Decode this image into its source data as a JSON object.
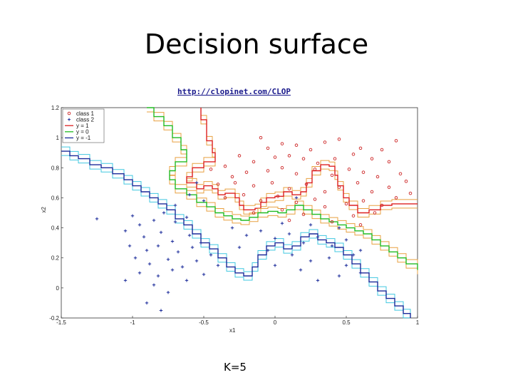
{
  "slide": {
    "title": "Decision surface",
    "link": "http://clopinet.com/CLOP",
    "caption": "K=5"
  },
  "colors": {
    "class1": "#cc2222",
    "class2": "#1a2a9a",
    "y1": "#dd2020",
    "y0": "#22bb22",
    "ym1": "#1a2a9a",
    "halo_pos": "#e8a040",
    "halo_neg": "#40c8e0"
  },
  "chart_data": {
    "type": "scatter",
    "title": "",
    "xlabel": "x1",
    "ylabel": "x2",
    "xlim": [
      -1.5,
      1
    ],
    "ylim": [
      -0.2,
      1.2
    ],
    "xticks": [
      "-1.5",
      "-1",
      "-0.5",
      "0",
      "0.5",
      "1"
    ],
    "yticks": [
      "-0.2",
      "0",
      "0.2",
      "0.4",
      "0.6",
      "0.8",
      "1",
      "1.2"
    ],
    "legend_position": "top-left",
    "legend": [
      "class 1",
      "class 2",
      "y = 1",
      "y = 0",
      "y = -1"
    ],
    "series": [
      {
        "name": "class 1",
        "marker": "circle",
        "points": [
          [
            -0.1,
            1.0
          ],
          [
            -0.05,
            0.93
          ],
          [
            0.05,
            0.96
          ],
          [
            0.15,
            0.95
          ],
          [
            0.25,
            0.92
          ],
          [
            0.35,
            0.97
          ],
          [
            0.45,
            0.99
          ],
          [
            0.6,
            0.93
          ],
          [
            0.75,
            0.92
          ],
          [
            0.85,
            0.98
          ],
          [
            -0.25,
            0.88
          ],
          [
            -0.15,
            0.84
          ],
          [
            0.0,
            0.87
          ],
          [
            0.1,
            0.88
          ],
          [
            0.2,
            0.86
          ],
          [
            0.3,
            0.83
          ],
          [
            0.42,
            0.86
          ],
          [
            0.55,
            0.89
          ],
          [
            0.68,
            0.86
          ],
          [
            0.8,
            0.84
          ],
          [
            -0.45,
            0.79
          ],
          [
            -0.35,
            0.81
          ],
          [
            -0.2,
            0.77
          ],
          [
            -0.05,
            0.78
          ],
          [
            0.05,
            0.8
          ],
          [
            0.15,
            0.76
          ],
          [
            0.28,
            0.79
          ],
          [
            0.4,
            0.75
          ],
          [
            0.52,
            0.79
          ],
          [
            0.62,
            0.77
          ],
          [
            0.72,
            0.74
          ],
          [
            0.88,
            0.76
          ],
          [
            -0.4,
            0.69
          ],
          [
            -0.28,
            0.7
          ],
          [
            -0.15,
            0.68
          ],
          [
            -0.02,
            0.7
          ],
          [
            0.1,
            0.66
          ],
          [
            0.22,
            0.69
          ],
          [
            0.35,
            0.64
          ],
          [
            0.45,
            0.67
          ],
          [
            0.58,
            0.7
          ],
          [
            0.68,
            0.64
          ],
          [
            0.8,
            0.67
          ],
          [
            0.92,
            0.71
          ],
          [
            -0.35,
            0.6
          ],
          [
            -0.22,
            0.62
          ],
          [
            -0.1,
            0.58
          ],
          [
            0.02,
            0.61
          ],
          [
            0.15,
            0.57
          ],
          [
            0.28,
            0.59
          ],
          [
            0.5,
            0.56
          ],
          [
            0.62,
            0.58
          ],
          [
            0.75,
            0.55
          ],
          [
            0.85,
            0.6
          ],
          [
            -0.15,
            0.5
          ],
          [
            0.05,
            0.52
          ],
          [
            0.2,
            0.49
          ],
          [
            0.35,
            0.54
          ],
          [
            0.55,
            0.48
          ],
          [
            0.7,
            0.5
          ],
          [
            0.4,
            0.44
          ],
          [
            0.6,
            0.42
          ],
          [
            0.1,
            0.45
          ],
          [
            -0.3,
            0.74
          ],
          [
            0.95,
            0.63
          ]
        ]
      },
      {
        "name": "class 2",
        "marker": "plus",
        "points": [
          [
            -1.25,
            0.46
          ],
          [
            -1.0,
            0.48
          ],
          [
            -0.95,
            0.42
          ],
          [
            -0.85,
            0.45
          ],
          [
            -0.78,
            0.5
          ],
          [
            -0.7,
            0.44
          ],
          [
            -0.62,
            0.47
          ],
          [
            -1.05,
            0.38
          ],
          [
            -0.92,
            0.34
          ],
          [
            -0.8,
            0.37
          ],
          [
            -0.72,
            0.31
          ],
          [
            -0.6,
            0.35
          ],
          [
            -0.52,
            0.3
          ],
          [
            -1.02,
            0.28
          ],
          [
            -0.9,
            0.25
          ],
          [
            -0.82,
            0.28
          ],
          [
            -0.68,
            0.24
          ],
          [
            -0.58,
            0.27
          ],
          [
            -0.45,
            0.22
          ],
          [
            -0.98,
            0.2
          ],
          [
            -0.88,
            0.16
          ],
          [
            -0.75,
            0.19
          ],
          [
            -0.65,
            0.14
          ],
          [
            -0.55,
            0.18
          ],
          [
            -0.4,
            0.15
          ],
          [
            -0.95,
            0.1
          ],
          [
            -0.82,
            0.08
          ],
          [
            -0.72,
            0.12
          ],
          [
            -0.62,
            0.05
          ],
          [
            -0.5,
            0.09
          ],
          [
            -0.85,
            0.02
          ],
          [
            -0.75,
            -0.03
          ],
          [
            -1.05,
            0.05
          ],
          [
            -0.9,
            -0.1
          ],
          [
            -0.8,
            -0.15
          ],
          [
            -0.7,
            0.55
          ],
          [
            -0.6,
            0.62
          ],
          [
            -0.5,
            0.58
          ],
          [
            -0.55,
            0.7
          ],
          [
            -0.3,
            0.4
          ],
          [
            -0.2,
            0.35
          ],
          [
            -0.1,
            0.38
          ],
          [
            0.0,
            0.33
          ],
          [
            0.1,
            0.36
          ],
          [
            0.2,
            0.3
          ],
          [
            0.3,
            0.34
          ],
          [
            0.4,
            0.28
          ],
          [
            0.5,
            0.32
          ],
          [
            0.6,
            0.25
          ],
          [
            -0.05,
            0.25
          ],
          [
            0.12,
            0.22
          ],
          [
            0.25,
            0.18
          ],
          [
            0.38,
            0.2
          ],
          [
            0.5,
            0.15
          ],
          [
            0.6,
            0.1
          ],
          [
            0.0,
            0.15
          ],
          [
            0.18,
            0.12
          ],
          [
            0.3,
            0.05
          ],
          [
            0.45,
            0.08
          ],
          [
            0.05,
            0.43
          ],
          [
            0.25,
            0.42
          ],
          [
            -0.25,
            0.27
          ],
          [
            0.15,
            0.6
          ],
          [
            0.55,
            0.22
          ],
          [
            0.45,
            0.4
          ]
        ]
      }
    ],
    "boundaries": [
      {
        "name": "y = 1",
        "points": [
          [
            -0.52,
            1.2
          ],
          [
            -0.52,
            1.12
          ],
          [
            -0.48,
            1.07
          ],
          [
            -0.48,
            0.98
          ],
          [
            -0.44,
            0.9
          ],
          [
            -0.42,
            0.84
          ],
          [
            -0.5,
            0.8
          ],
          [
            -0.58,
            0.74
          ],
          [
            -0.62,
            0.7
          ],
          [
            -0.55,
            0.66
          ],
          [
            -0.5,
            0.68
          ],
          [
            -0.44,
            0.66
          ],
          [
            -0.4,
            0.62
          ],
          [
            -0.35,
            0.63
          ],
          [
            -0.28,
            0.6
          ],
          [
            -0.25,
            0.55
          ],
          [
            -0.22,
            0.52
          ],
          [
            -0.14,
            0.53
          ],
          [
            -0.1,
            0.57
          ],
          [
            -0.06,
            0.6
          ],
          [
            0.0,
            0.61
          ],
          [
            0.06,
            0.64
          ],
          [
            0.12,
            0.62
          ],
          [
            0.18,
            0.64
          ],
          [
            0.22,
            0.7
          ],
          [
            0.26,
            0.78
          ],
          [
            0.32,
            0.82
          ],
          [
            0.38,
            0.81
          ],
          [
            0.42,
            0.75
          ],
          [
            0.44,
            0.68
          ],
          [
            0.48,
            0.6
          ],
          [
            0.52,
            0.55
          ],
          [
            0.58,
            0.5
          ],
          [
            0.66,
            0.52
          ],
          [
            0.74,
            0.55
          ],
          [
            0.82,
            0.56
          ],
          [
            0.9,
            0.56
          ],
          [
            1.0,
            0.56
          ]
        ]
      },
      {
        "name": "y = 0",
        "points": [
          [
            -0.9,
            1.2
          ],
          [
            -0.85,
            1.14
          ],
          [
            -0.78,
            1.08
          ],
          [
            -0.72,
            1.0
          ],
          [
            -0.66,
            0.92
          ],
          [
            -0.62,
            0.84
          ],
          [
            -0.7,
            0.78
          ],
          [
            -0.74,
            0.72
          ],
          [
            -0.7,
            0.66
          ],
          [
            -0.62,
            0.62
          ],
          [
            -0.55,
            0.57
          ],
          [
            -0.48,
            0.54
          ],
          [
            -0.42,
            0.5
          ],
          [
            -0.36,
            0.48
          ],
          [
            -0.3,
            0.46
          ],
          [
            -0.24,
            0.45
          ],
          [
            -0.18,
            0.47
          ],
          [
            -0.12,
            0.5
          ],
          [
            -0.05,
            0.51
          ],
          [
            0.02,
            0.5
          ],
          [
            0.08,
            0.52
          ],
          [
            0.14,
            0.55
          ],
          [
            0.2,
            0.52
          ],
          [
            0.26,
            0.49
          ],
          [
            0.32,
            0.46
          ],
          [
            0.38,
            0.44
          ],
          [
            0.44,
            0.42
          ],
          [
            0.5,
            0.4
          ],
          [
            0.56,
            0.38
          ],
          [
            0.62,
            0.36
          ],
          [
            0.68,
            0.32
          ],
          [
            0.74,
            0.28
          ],
          [
            0.8,
            0.24
          ],
          [
            0.86,
            0.2
          ],
          [
            0.92,
            0.16
          ],
          [
            1.0,
            0.12
          ]
        ]
      },
      {
        "name": "y = -1",
        "points": [
          [
            -1.5,
            0.91
          ],
          [
            -1.44,
            0.88
          ],
          [
            -1.38,
            0.86
          ],
          [
            -1.3,
            0.82
          ],
          [
            -1.22,
            0.8
          ],
          [
            -1.14,
            0.76
          ],
          [
            -1.06,
            0.72
          ],
          [
            -1.0,
            0.68
          ],
          [
            -0.94,
            0.64
          ],
          [
            -0.88,
            0.6
          ],
          [
            -0.82,
            0.56
          ],
          [
            -0.76,
            0.52
          ],
          [
            -0.7,
            0.46
          ],
          [
            -0.64,
            0.42
          ],
          [
            -0.58,
            0.36
          ],
          [
            -0.52,
            0.3
          ],
          [
            -0.46,
            0.26
          ],
          [
            -0.4,
            0.2
          ],
          [
            -0.34,
            0.14
          ],
          [
            -0.28,
            0.1
          ],
          [
            -0.22,
            0.08
          ],
          [
            -0.16,
            0.14
          ],
          [
            -0.12,
            0.22
          ],
          [
            -0.06,
            0.28
          ],
          [
            0.0,
            0.3
          ],
          [
            0.06,
            0.26
          ],
          [
            0.12,
            0.28
          ],
          [
            0.18,
            0.34
          ],
          [
            0.24,
            0.36
          ],
          [
            0.3,
            0.32
          ],
          [
            0.36,
            0.3
          ],
          [
            0.42,
            0.27
          ],
          [
            0.48,
            0.22
          ],
          [
            0.54,
            0.16
          ],
          [
            0.6,
            0.1
          ],
          [
            0.66,
            0.04
          ],
          [
            0.72,
            -0.02
          ],
          [
            0.78,
            -0.07
          ],
          [
            0.84,
            -0.12
          ],
          [
            0.9,
            -0.17
          ],
          [
            0.95,
            -0.2
          ]
        ]
      }
    ]
  }
}
